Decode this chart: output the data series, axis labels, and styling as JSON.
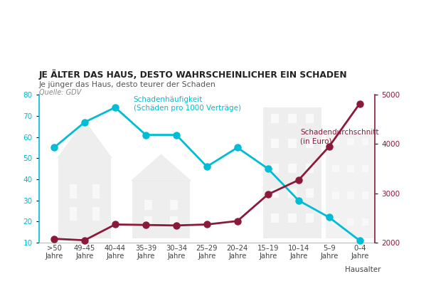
{
  "categories": [
    ">50\nJahre",
    "49–45\nJahre",
    "40–44\nJahre",
    "35–39\nJahre",
    "30–34\nJahre",
    "25–29\nJahre",
    "20–24\nJahre",
    "15–19\nJahre",
    "10–14\nJahre",
    "5–9\nJahre",
    "0–4\nJahre"
  ],
  "haeufigkeit": [
    55,
    67,
    74,
    61,
    61,
    46,
    55,
    45,
    30,
    22,
    11
  ],
  "kosten": [
    2080,
    2050,
    2370,
    2360,
    2350,
    2370,
    2440,
    2980,
    3270,
    3950,
    4820
  ],
  "haeufigkeit_color": "#00BCD4",
  "kosten_color": "#8B1A3A",
  "title": "JE ÄLTER DAS HAUS, DESTO WAHRSCHEINLICHER EIN SCHADEN",
  "subtitle": "Je jünger das Haus, desto teurer der Schaden",
  "source": "Quelle: GDV",
  "ylim_left": [
    10,
    80
  ],
  "ylim_right": [
    2000,
    5000
  ],
  "yticks_left": [
    10,
    20,
    30,
    40,
    50,
    60,
    70,
    80
  ],
  "yticks_right": [
    2000,
    3000,
    4000,
    5000
  ],
  "label_haeufigkeit": "Schadenhäufigkeit\n(Schäden pro 1000 Verträge)",
  "label_kosten": "Schadendurchschnitt\n(in Euro)",
  "xlabel": "Hausalter",
  "background": "#ffffff",
  "house_color": "#cccccc",
  "house_alpha": 0.32
}
